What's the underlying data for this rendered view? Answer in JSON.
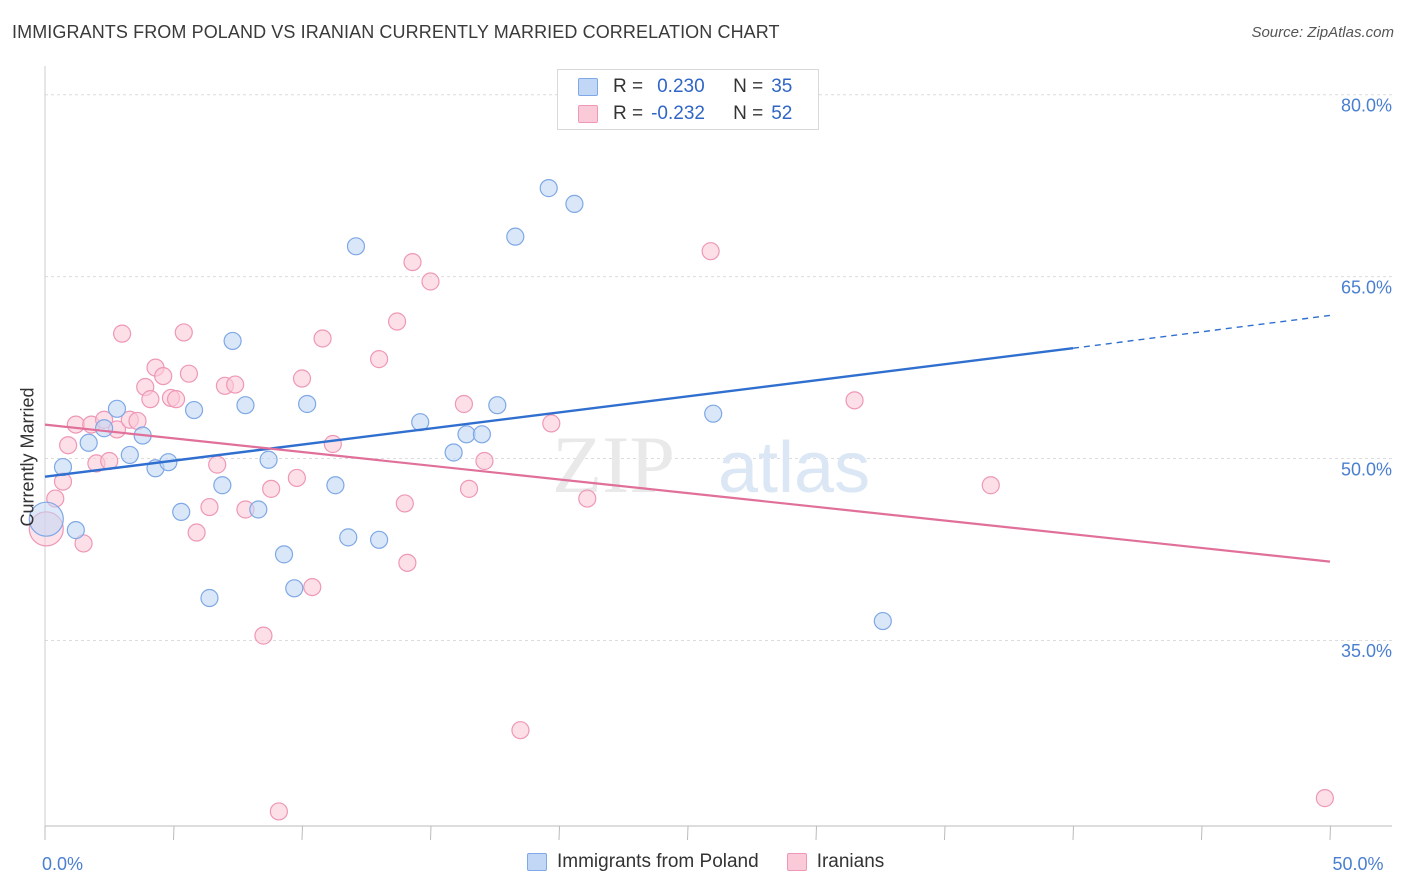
{
  "title": "IMMIGRANTS FROM POLAND VS IRANIAN CURRENTLY MARRIED CORRELATION CHART",
  "source": "Source: ZipAtlas.com",
  "watermark": {
    "zip": "ZIP",
    "atlas": "atlas"
  },
  "legend": {
    "rows": [
      {
        "r_label": "R =",
        "r_value": "0.230",
        "n_label": "N =",
        "n_value": "35"
      },
      {
        "r_label": "R =",
        "r_value": "-0.232",
        "n_label": "N =",
        "n_value": "52"
      }
    ]
  },
  "bottom_legend": {
    "series_a": "Immigrants from Poland",
    "series_b": "Iranians"
  },
  "colors": {
    "blue_fill": "#c1d7f5",
    "blue_stroke": "#7ea8e6",
    "blue_line": "#2f6fd0",
    "pink_fill": "#fbcad9",
    "pink_stroke": "#ee98b6",
    "pink_line": "#e0709a",
    "axis_text": "#4a7fd0",
    "grid": "#dcdcdc"
  },
  "chart_data": {
    "type": "scatter",
    "title": "IMMIGRANTS FROM POLAND VS IRANIAN CURRENTLY MARRIED CORRELATION CHART",
    "xlabel": "",
    "ylabel": "Currently Married",
    "xlim": [
      0,
      50
    ],
    "ylim": [
      20.5,
      83.5
    ],
    "x_tick_labels": [
      {
        "value": 0,
        "label": "0.0%"
      },
      {
        "value": 50,
        "label": "50.0%"
      }
    ],
    "y_tick_labels": [
      {
        "value": 80,
        "label": "80.0%"
      },
      {
        "value": 65,
        "label": "65.0%"
      },
      {
        "value": 50,
        "label": "50.0%"
      },
      {
        "value": 35,
        "label": "35.0%"
      }
    ],
    "y_gridlines": [
      80.8,
      65.8,
      50.8,
      35.8
    ],
    "x_minor_ticks": [
      0,
      5,
      10,
      15,
      20,
      25,
      30,
      35,
      40,
      45,
      50
    ],
    "grid": true,
    "legend_position": "top-center",
    "series": [
      {
        "name": "Immigrants from Poland",
        "color": "#7ea8e6",
        "points": [
          [
            0.05,
            45.8
          ],
          [
            0.7,
            50.1
          ],
          [
            1.2,
            44.9
          ],
          [
            1.7,
            52.1
          ],
          [
            2.3,
            53.3
          ],
          [
            2.8,
            54.9
          ],
          [
            3.3,
            51.1
          ],
          [
            3.8,
            52.7
          ],
          [
            4.3,
            50.0
          ],
          [
            4.8,
            50.5
          ],
          [
            5.3,
            46.4
          ],
          [
            5.8,
            54.8
          ],
          [
            6.4,
            39.3
          ],
          [
            6.9,
            48.6
          ],
          [
            7.3,
            60.5
          ],
          [
            7.8,
            55.2
          ],
          [
            8.3,
            46.6
          ],
          [
            8.7,
            50.7
          ],
          [
            9.3,
            42.9
          ],
          [
            9.7,
            40.1
          ],
          [
            10.2,
            55.3
          ],
          [
            11.3,
            48.6
          ],
          [
            11.8,
            44.3
          ],
          [
            12.1,
            68.3
          ],
          [
            13.0,
            44.1
          ],
          [
            14.6,
            53.8
          ],
          [
            15.9,
            51.3
          ],
          [
            16.4,
            52.8
          ],
          [
            17.0,
            52.8
          ],
          [
            17.6,
            55.2
          ],
          [
            18.3,
            69.1
          ],
          [
            19.6,
            73.1
          ],
          [
            20.6,
            71.8
          ],
          [
            26.0,
            54.5
          ],
          [
            32.6,
            37.4
          ]
        ]
      },
      {
        "name": "Iranians",
        "color": "#ee98b6",
        "points": [
          [
            0.05,
            45.0
          ],
          [
            0.4,
            47.5
          ],
          [
            0.7,
            48.9
          ],
          [
            0.9,
            51.9
          ],
          [
            1.2,
            53.6
          ],
          [
            1.5,
            43.8
          ],
          [
            1.8,
            53.6
          ],
          [
            2.0,
            50.4
          ],
          [
            2.3,
            54.0
          ],
          [
            2.5,
            50.6
          ],
          [
            2.8,
            53.2
          ],
          [
            3.0,
            61.1
          ],
          [
            3.3,
            54.0
          ],
          [
            3.6,
            53.9
          ],
          [
            3.9,
            56.7
          ],
          [
            4.1,
            55.7
          ],
          [
            4.3,
            58.3
          ],
          [
            4.6,
            57.6
          ],
          [
            4.9,
            55.8
          ],
          [
            5.1,
            55.7
          ],
          [
            5.4,
            61.2
          ],
          [
            5.6,
            57.8
          ],
          [
            5.9,
            44.7
          ],
          [
            6.4,
            46.8
          ],
          [
            6.7,
            50.3
          ],
          [
            7.0,
            56.8
          ],
          [
            7.4,
            56.9
          ],
          [
            7.8,
            46.6
          ],
          [
            8.5,
            36.2
          ],
          [
            8.8,
            48.3
          ],
          [
            9.1,
            21.7
          ],
          [
            9.8,
            49.2
          ],
          [
            10.0,
            57.4
          ],
          [
            10.4,
            40.2
          ],
          [
            10.8,
            60.7
          ],
          [
            11.2,
            52.0
          ],
          [
            13.0,
            59.0
          ],
          [
            13.7,
            62.1
          ],
          [
            14.0,
            47.1
          ],
          [
            14.1,
            42.2
          ],
          [
            14.3,
            67.0
          ],
          [
            15.0,
            65.4
          ],
          [
            16.3,
            55.3
          ],
          [
            16.5,
            48.3
          ],
          [
            17.1,
            50.6
          ],
          [
            18.5,
            28.4
          ],
          [
            19.7,
            53.7
          ],
          [
            21.1,
            47.5
          ],
          [
            25.9,
            67.9
          ],
          [
            31.5,
            55.6
          ],
          [
            36.8,
            48.6
          ],
          [
            49.8,
            22.8
          ]
        ]
      }
    ],
    "trend_lines": [
      {
        "series": "Immigrants from Poland",
        "x": [
          0,
          40
        ],
        "y": [
          49.3,
          59.9
        ],
        "dashed_extension": {
          "x": [
            40,
            50
          ],
          "y": [
            59.9,
            62.6
          ]
        }
      },
      {
        "series": "Iranians",
        "x": [
          0,
          50
        ],
        "y": [
          53.6,
          42.3
        ]
      }
    ]
  }
}
